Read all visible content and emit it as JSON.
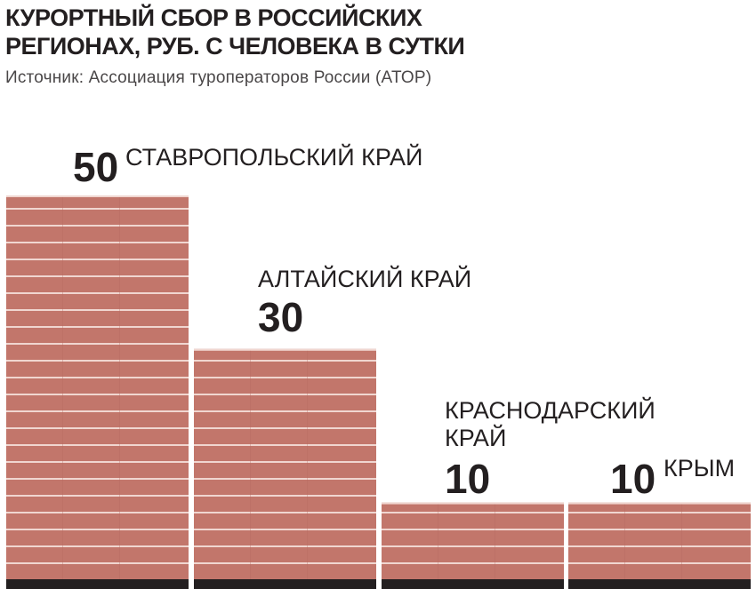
{
  "header": {
    "title_line1": "КУРОРТНЫЙ СБОР В РОССИЙСКИХ",
    "title_line2": "РЕГИОНАХ, РУБ. С ЧЕЛОВЕКА В СУТКИ",
    "source": "Источник: Ассоциация туроператоров России (АТОР)"
  },
  "chart_data": {
    "type": "bar",
    "title": "КУРОРТНЫЙ СБОР В РОССИЙСКИХ РЕГИОНАХ, РУБ. С ЧЕЛОВЕКА В СУТКИ",
    "subtitle": "Источник: Ассоциация туроператоров России (АТОР)",
    "categories": [
      "СТАВРОПОЛЬСКИЙ КРАЙ",
      "АЛТАЙСКИЙ КРАЙ",
      "КРАСНОДАРСКИЙ КРАЙ",
      "КРЫМ"
    ],
    "category_label_lines": [
      [
        "СТАВРОПОЛЬСКИЙ КРАЙ"
      ],
      [
        "АЛТАЙСКИЙ КРАЙ"
      ],
      [
        "КРАСНОДАРСКИЙ",
        "КРАЙ"
      ],
      [
        "КРЫМ"
      ]
    ],
    "values": [
      50,
      30,
      10,
      10
    ],
    "value_labels": [
      "50",
      "30",
      "10",
      "10"
    ],
    "ylim": [
      0,
      50
    ],
    "bar_color": "#c2766b",
    "stripe_color": "#f0d6d0",
    "base_color": "#231f20",
    "grid": false
  }
}
